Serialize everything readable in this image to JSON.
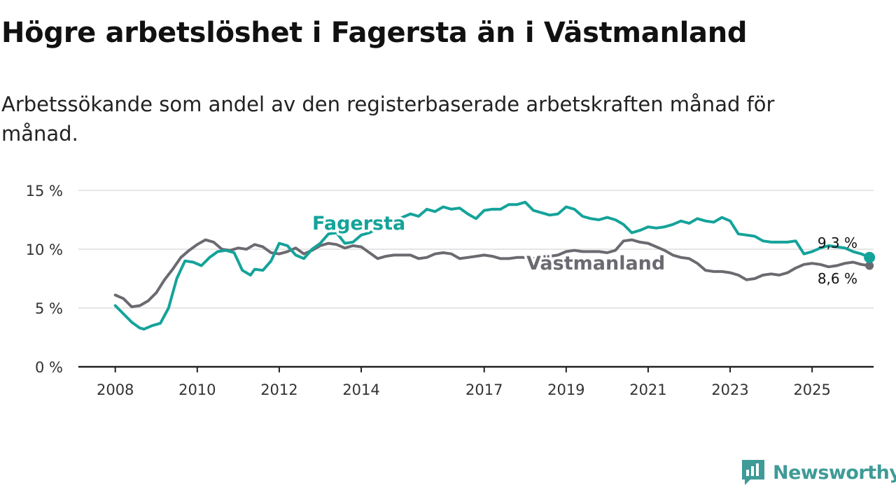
{
  "title": "Högre arbetslöshet i Fagersta än i Västmanland",
  "subtitle": "Arbetssökande som andel av den registerbaserade arbetskraften månad för månad.",
  "brand": {
    "name": "Newsworthy",
    "icon": "newsworthy-logo-icon",
    "color": "#3f9b97"
  },
  "colors": {
    "fagersta": "#14a39a",
    "vastmanland": "#6b6a70",
    "grid": "#dddddd",
    "axis": "#222222"
  },
  "chart_data": {
    "type": "line",
    "title": "Högre arbetslöshet i Fagersta än i Västmanland",
    "xlabel": "",
    "ylabel": "",
    "x_ticks": [
      {
        "label": "2008",
        "value": 2008.0
      },
      {
        "label": "2010",
        "value": 2010.0
      },
      {
        "label": "2012",
        "value": 2012.0
      },
      {
        "label": "2014",
        "value": 2014.0
      },
      {
        "label": "2017",
        "value": 2017.0
      },
      {
        "label": "2019",
        "value": 2019.0
      },
      {
        "label": "2021",
        "value": 2021.0
      },
      {
        "label": "2023",
        "value": 2023.0
      },
      {
        "label": "2025",
        "value": 2025.0
      }
    ],
    "y_ticks": [
      {
        "label": "0 %",
        "value": 0
      },
      {
        "label": "5 %",
        "value": 5
      },
      {
        "label": "10 %",
        "value": 10
      },
      {
        "label": "15 %",
        "value": 15
      }
    ],
    "xlim": [
      2007.1,
      2026.5
    ],
    "ylim": [
      0,
      15
    ],
    "grid": true,
    "series": [
      {
        "name": "Fagersta",
        "color": "#14a39a",
        "end_label": "9,3 %",
        "points": [
          [
            2008.0,
            5.2
          ],
          [
            2008.2,
            4.5
          ],
          [
            2008.4,
            3.8
          ],
          [
            2008.6,
            3.3
          ],
          [
            2008.7,
            3.2
          ],
          [
            2008.9,
            3.5
          ],
          [
            2009.1,
            3.7
          ],
          [
            2009.3,
            5.0
          ],
          [
            2009.5,
            7.5
          ],
          [
            2009.7,
            9.0
          ],
          [
            2009.9,
            8.9
          ],
          [
            2010.1,
            8.6
          ],
          [
            2010.3,
            9.3
          ],
          [
            2010.5,
            9.8
          ],
          [
            2010.7,
            9.9
          ],
          [
            2010.9,
            9.7
          ],
          [
            2011.1,
            8.2
          ],
          [
            2011.3,
            7.8
          ],
          [
            2011.4,
            8.3
          ],
          [
            2011.6,
            8.2
          ],
          [
            2011.8,
            9.0
          ],
          [
            2012.0,
            10.5
          ],
          [
            2012.2,
            10.3
          ],
          [
            2012.4,
            9.5
          ],
          [
            2012.6,
            9.2
          ],
          [
            2012.8,
            10.0
          ],
          [
            2013.0,
            10.5
          ],
          [
            2013.2,
            11.3
          ],
          [
            2013.4,
            11.4
          ],
          [
            2013.6,
            10.5
          ],
          [
            2013.8,
            10.6
          ],
          [
            2014.0,
            11.2
          ],
          [
            2014.2,
            11.4
          ],
          [
            2014.4,
            11.8
          ],
          [
            2014.6,
            12.2
          ],
          [
            2014.8,
            12.3
          ],
          [
            2015.0,
            12.7
          ],
          [
            2015.2,
            13.0
          ],
          [
            2015.4,
            12.8
          ],
          [
            2015.6,
            13.4
          ],
          [
            2015.8,
            13.2
          ],
          [
            2016.0,
            13.6
          ],
          [
            2016.2,
            13.4
          ],
          [
            2016.4,
            13.5
          ],
          [
            2016.6,
            13.0
          ],
          [
            2016.8,
            12.6
          ],
          [
            2017.0,
            13.3
          ],
          [
            2017.2,
            13.4
          ],
          [
            2017.4,
            13.4
          ],
          [
            2017.6,
            13.8
          ],
          [
            2017.8,
            13.8
          ],
          [
            2018.0,
            14.0
          ],
          [
            2018.2,
            13.3
          ],
          [
            2018.4,
            13.1
          ],
          [
            2018.6,
            12.9
          ],
          [
            2018.8,
            13.0
          ],
          [
            2019.0,
            13.6
          ],
          [
            2019.2,
            13.4
          ],
          [
            2019.4,
            12.8
          ],
          [
            2019.6,
            12.6
          ],
          [
            2019.8,
            12.5
          ],
          [
            2020.0,
            12.7
          ],
          [
            2020.2,
            12.5
          ],
          [
            2020.4,
            12.1
          ],
          [
            2020.6,
            11.4
          ],
          [
            2020.8,
            11.6
          ],
          [
            2021.0,
            11.9
          ],
          [
            2021.2,
            11.8
          ],
          [
            2021.4,
            11.9
          ],
          [
            2021.6,
            12.1
          ],
          [
            2021.8,
            12.4
          ],
          [
            2022.0,
            12.2
          ],
          [
            2022.2,
            12.6
          ],
          [
            2022.4,
            12.4
          ],
          [
            2022.6,
            12.3
          ],
          [
            2022.8,
            12.7
          ],
          [
            2023.0,
            12.4
          ],
          [
            2023.2,
            11.3
          ],
          [
            2023.4,
            11.2
          ],
          [
            2023.6,
            11.1
          ],
          [
            2023.8,
            10.7
          ],
          [
            2024.0,
            10.6
          ],
          [
            2024.2,
            10.6
          ],
          [
            2024.4,
            10.6
          ],
          [
            2024.6,
            10.7
          ],
          [
            2024.8,
            9.6
          ],
          [
            2025.0,
            9.8
          ],
          [
            2025.2,
            10.1
          ],
          [
            2025.4,
            10.3
          ],
          [
            2025.6,
            10.2
          ],
          [
            2025.8,
            10.1
          ],
          [
            2026.0,
            9.8
          ],
          [
            2026.2,
            9.6
          ],
          [
            2026.4,
            9.3
          ]
        ]
      },
      {
        "name": "Västmanland",
        "color": "#6b6a70",
        "end_label": "8,6 %",
        "points": [
          [
            2008.0,
            6.1
          ],
          [
            2008.2,
            5.8
          ],
          [
            2008.4,
            5.1
          ],
          [
            2008.6,
            5.2
          ],
          [
            2008.8,
            5.6
          ],
          [
            2009.0,
            6.3
          ],
          [
            2009.2,
            7.4
          ],
          [
            2009.4,
            8.3
          ],
          [
            2009.6,
            9.3
          ],
          [
            2009.8,
            9.9
          ],
          [
            2010.0,
            10.4
          ],
          [
            2010.2,
            10.8
          ],
          [
            2010.4,
            10.6
          ],
          [
            2010.6,
            10.0
          ],
          [
            2010.8,
            9.9
          ],
          [
            2011.0,
            10.1
          ],
          [
            2011.2,
            10.0
          ],
          [
            2011.4,
            10.4
          ],
          [
            2011.6,
            10.2
          ],
          [
            2011.8,
            9.7
          ],
          [
            2012.0,
            9.6
          ],
          [
            2012.2,
            9.8
          ],
          [
            2012.4,
            10.1
          ],
          [
            2012.6,
            9.6
          ],
          [
            2012.8,
            9.9
          ],
          [
            2013.0,
            10.3
          ],
          [
            2013.2,
            10.5
          ],
          [
            2013.4,
            10.4
          ],
          [
            2013.6,
            10.1
          ],
          [
            2013.8,
            10.3
          ],
          [
            2014.0,
            10.2
          ],
          [
            2014.2,
            9.7
          ],
          [
            2014.4,
            9.2
          ],
          [
            2014.6,
            9.4
          ],
          [
            2014.8,
            9.5
          ],
          [
            2015.0,
            9.5
          ],
          [
            2015.2,
            9.5
          ],
          [
            2015.4,
            9.2
          ],
          [
            2015.6,
            9.3
          ],
          [
            2015.8,
            9.6
          ],
          [
            2016.0,
            9.7
          ],
          [
            2016.2,
            9.6
          ],
          [
            2016.4,
            9.2
          ],
          [
            2016.6,
            9.3
          ],
          [
            2016.8,
            9.4
          ],
          [
            2017.0,
            9.5
          ],
          [
            2017.2,
            9.4
          ],
          [
            2017.4,
            9.2
          ],
          [
            2017.6,
            9.2
          ],
          [
            2017.8,
            9.3
          ],
          [
            2018.0,
            9.3
          ],
          [
            2018.2,
            9.2
          ],
          [
            2018.4,
            9.3
          ],
          [
            2018.6,
            9.4
          ],
          [
            2018.8,
            9.5
          ],
          [
            2019.0,
            9.8
          ],
          [
            2019.2,
            9.9
          ],
          [
            2019.4,
            9.8
          ],
          [
            2019.6,
            9.8
          ],
          [
            2019.8,
            9.8
          ],
          [
            2020.0,
            9.7
          ],
          [
            2020.2,
            9.9
          ],
          [
            2020.4,
            10.7
          ],
          [
            2020.6,
            10.8
          ],
          [
            2020.8,
            10.6
          ],
          [
            2021.0,
            10.5
          ],
          [
            2021.2,
            10.2
          ],
          [
            2021.4,
            9.9
          ],
          [
            2021.6,
            9.5
          ],
          [
            2021.8,
            9.3
          ],
          [
            2022.0,
            9.2
          ],
          [
            2022.2,
            8.8
          ],
          [
            2022.4,
            8.2
          ],
          [
            2022.6,
            8.1
          ],
          [
            2022.8,
            8.1
          ],
          [
            2023.0,
            8.0
          ],
          [
            2023.2,
            7.8
          ],
          [
            2023.4,
            7.4
          ],
          [
            2023.6,
            7.5
          ],
          [
            2023.8,
            7.8
          ],
          [
            2024.0,
            7.9
          ],
          [
            2024.2,
            7.8
          ],
          [
            2024.4,
            8.0
          ],
          [
            2024.6,
            8.4
          ],
          [
            2024.8,
            8.7
          ],
          [
            2025.0,
            8.8
          ],
          [
            2025.2,
            8.7
          ],
          [
            2025.4,
            8.5
          ],
          [
            2025.6,
            8.6
          ],
          [
            2025.8,
            8.8
          ],
          [
            2026.0,
            8.9
          ],
          [
            2026.2,
            8.7
          ],
          [
            2026.4,
            8.6
          ]
        ]
      }
    ]
  }
}
